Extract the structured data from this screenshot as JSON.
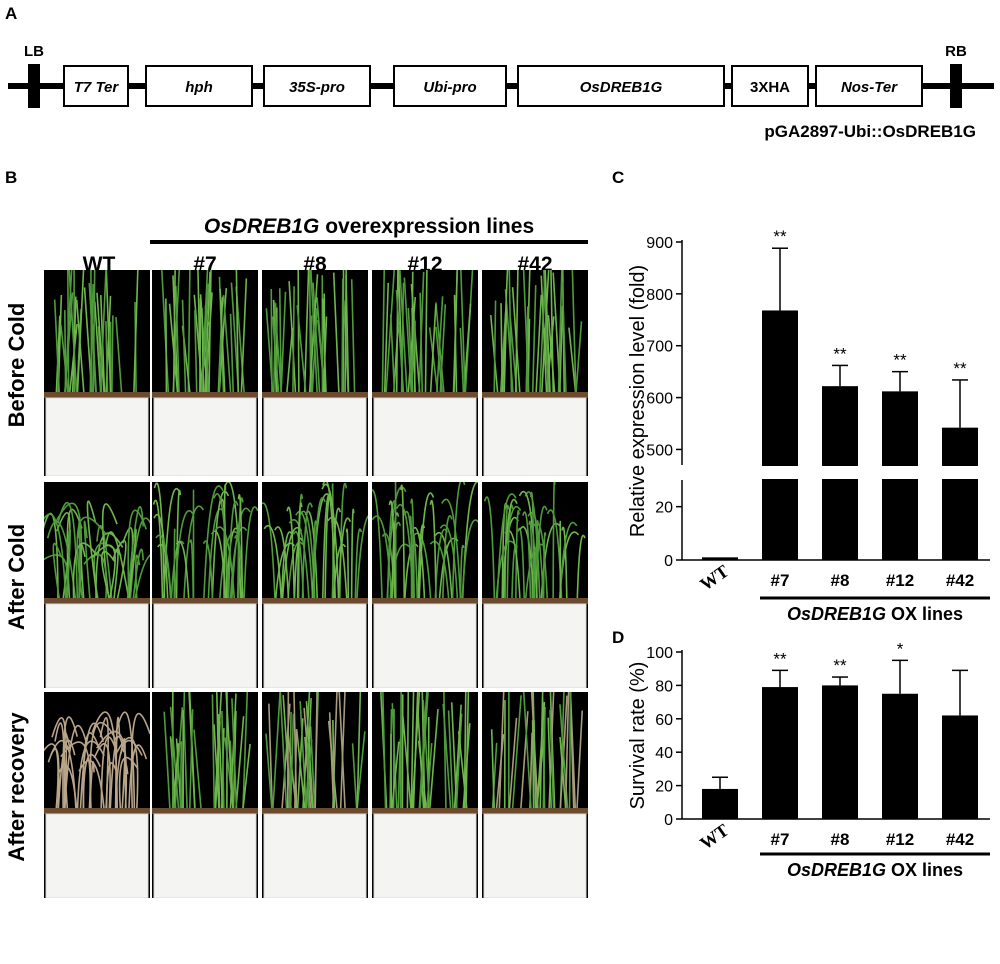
{
  "panels": {
    "a": "A",
    "b": "B",
    "c": "C",
    "d": "D"
  },
  "construct": {
    "left_border": "LB",
    "right_border": "RB",
    "elements": [
      "T7 Ter",
      "hph",
      "35S-pro",
      "Ubi-pro",
      "OsDREB1G",
      "3XHA",
      "Nos-Ter"
    ],
    "vector_name": "pGA2897-Ubi::OsDREB1G"
  },
  "photos": {
    "group_title_italic": "OsDREB1G",
    "group_title_rest": " overexpression lines",
    "columns": [
      "WT",
      "#7",
      "#8",
      "#12",
      "#42"
    ],
    "rows": [
      "Before Cold",
      "After Cold",
      "After recovery"
    ]
  },
  "chart_data": [
    {
      "type": "bar",
      "panel": "C",
      "categories": [
        "WT",
        "#7",
        "#8",
        "#12",
        "#42"
      ],
      "values": [
        1,
        768,
        622,
        612,
        542
      ],
      "errors": [
        0.3,
        120,
        40,
        38,
        92
      ],
      "significance": [
        "",
        "**",
        "**",
        "**",
        "**"
      ],
      "ylabel": "Relative expression level (fold)",
      "xgroup_label_italic": "OsDREB1G",
      "xgroup_label_rest": " OX lines",
      "ylim": [
        0,
        900
      ],
      "axis_break": [
        30,
        470
      ],
      "yticks_lower": [
        0,
        20
      ],
      "yticks_upper": [
        500,
        600,
        700,
        800,
        900
      ],
      "bar_color": "#000000"
    },
    {
      "type": "bar",
      "panel": "D",
      "categories": [
        "WT",
        "#7",
        "#8",
        "#12",
        "#42"
      ],
      "values": [
        18,
        79,
        80,
        75,
        62
      ],
      "errors": [
        7,
        10,
        5,
        20,
        27
      ],
      "significance": [
        "",
        "**",
        "**",
        "*",
        ""
      ],
      "ylabel": "Survival rate (%)",
      "xgroup_label_italic": "OsDREB1G",
      "xgroup_label_rest": " OX lines",
      "ylim": [
        0,
        100
      ],
      "yticks": [
        0,
        20,
        40,
        60,
        80,
        100
      ],
      "bar_color": "#000000"
    }
  ]
}
